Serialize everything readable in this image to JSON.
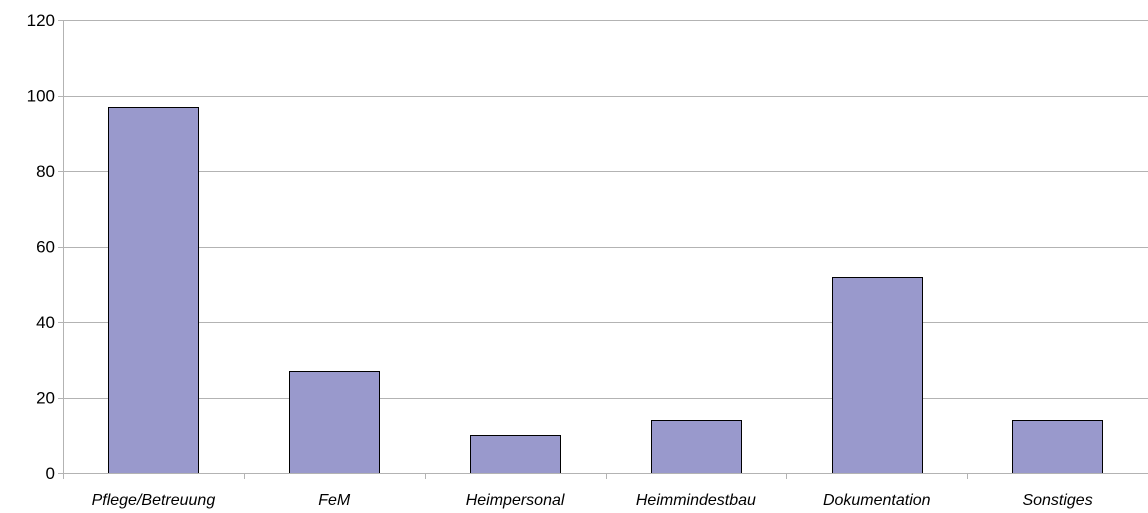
{
  "chart_data": {
    "type": "bar",
    "categories": [
      "Pflege/Betreuung",
      "FeM",
      "Heimpersonal",
      "Heimmindestbau",
      "Dokumentation",
      "Sonstiges"
    ],
    "values": [
      97,
      27,
      10,
      14,
      52,
      14
    ],
    "y_ticks": [
      "0",
      "20",
      "40",
      "60",
      "80",
      "100",
      "120"
    ],
    "ylim": [
      0,
      120
    ],
    "grid": true,
    "legend": "none",
    "colors": {
      "bar_fill": "#9999cc",
      "bar_stroke": "#000000",
      "gridline": "#b3b3b3",
      "axis": "#b3b3b3"
    }
  }
}
